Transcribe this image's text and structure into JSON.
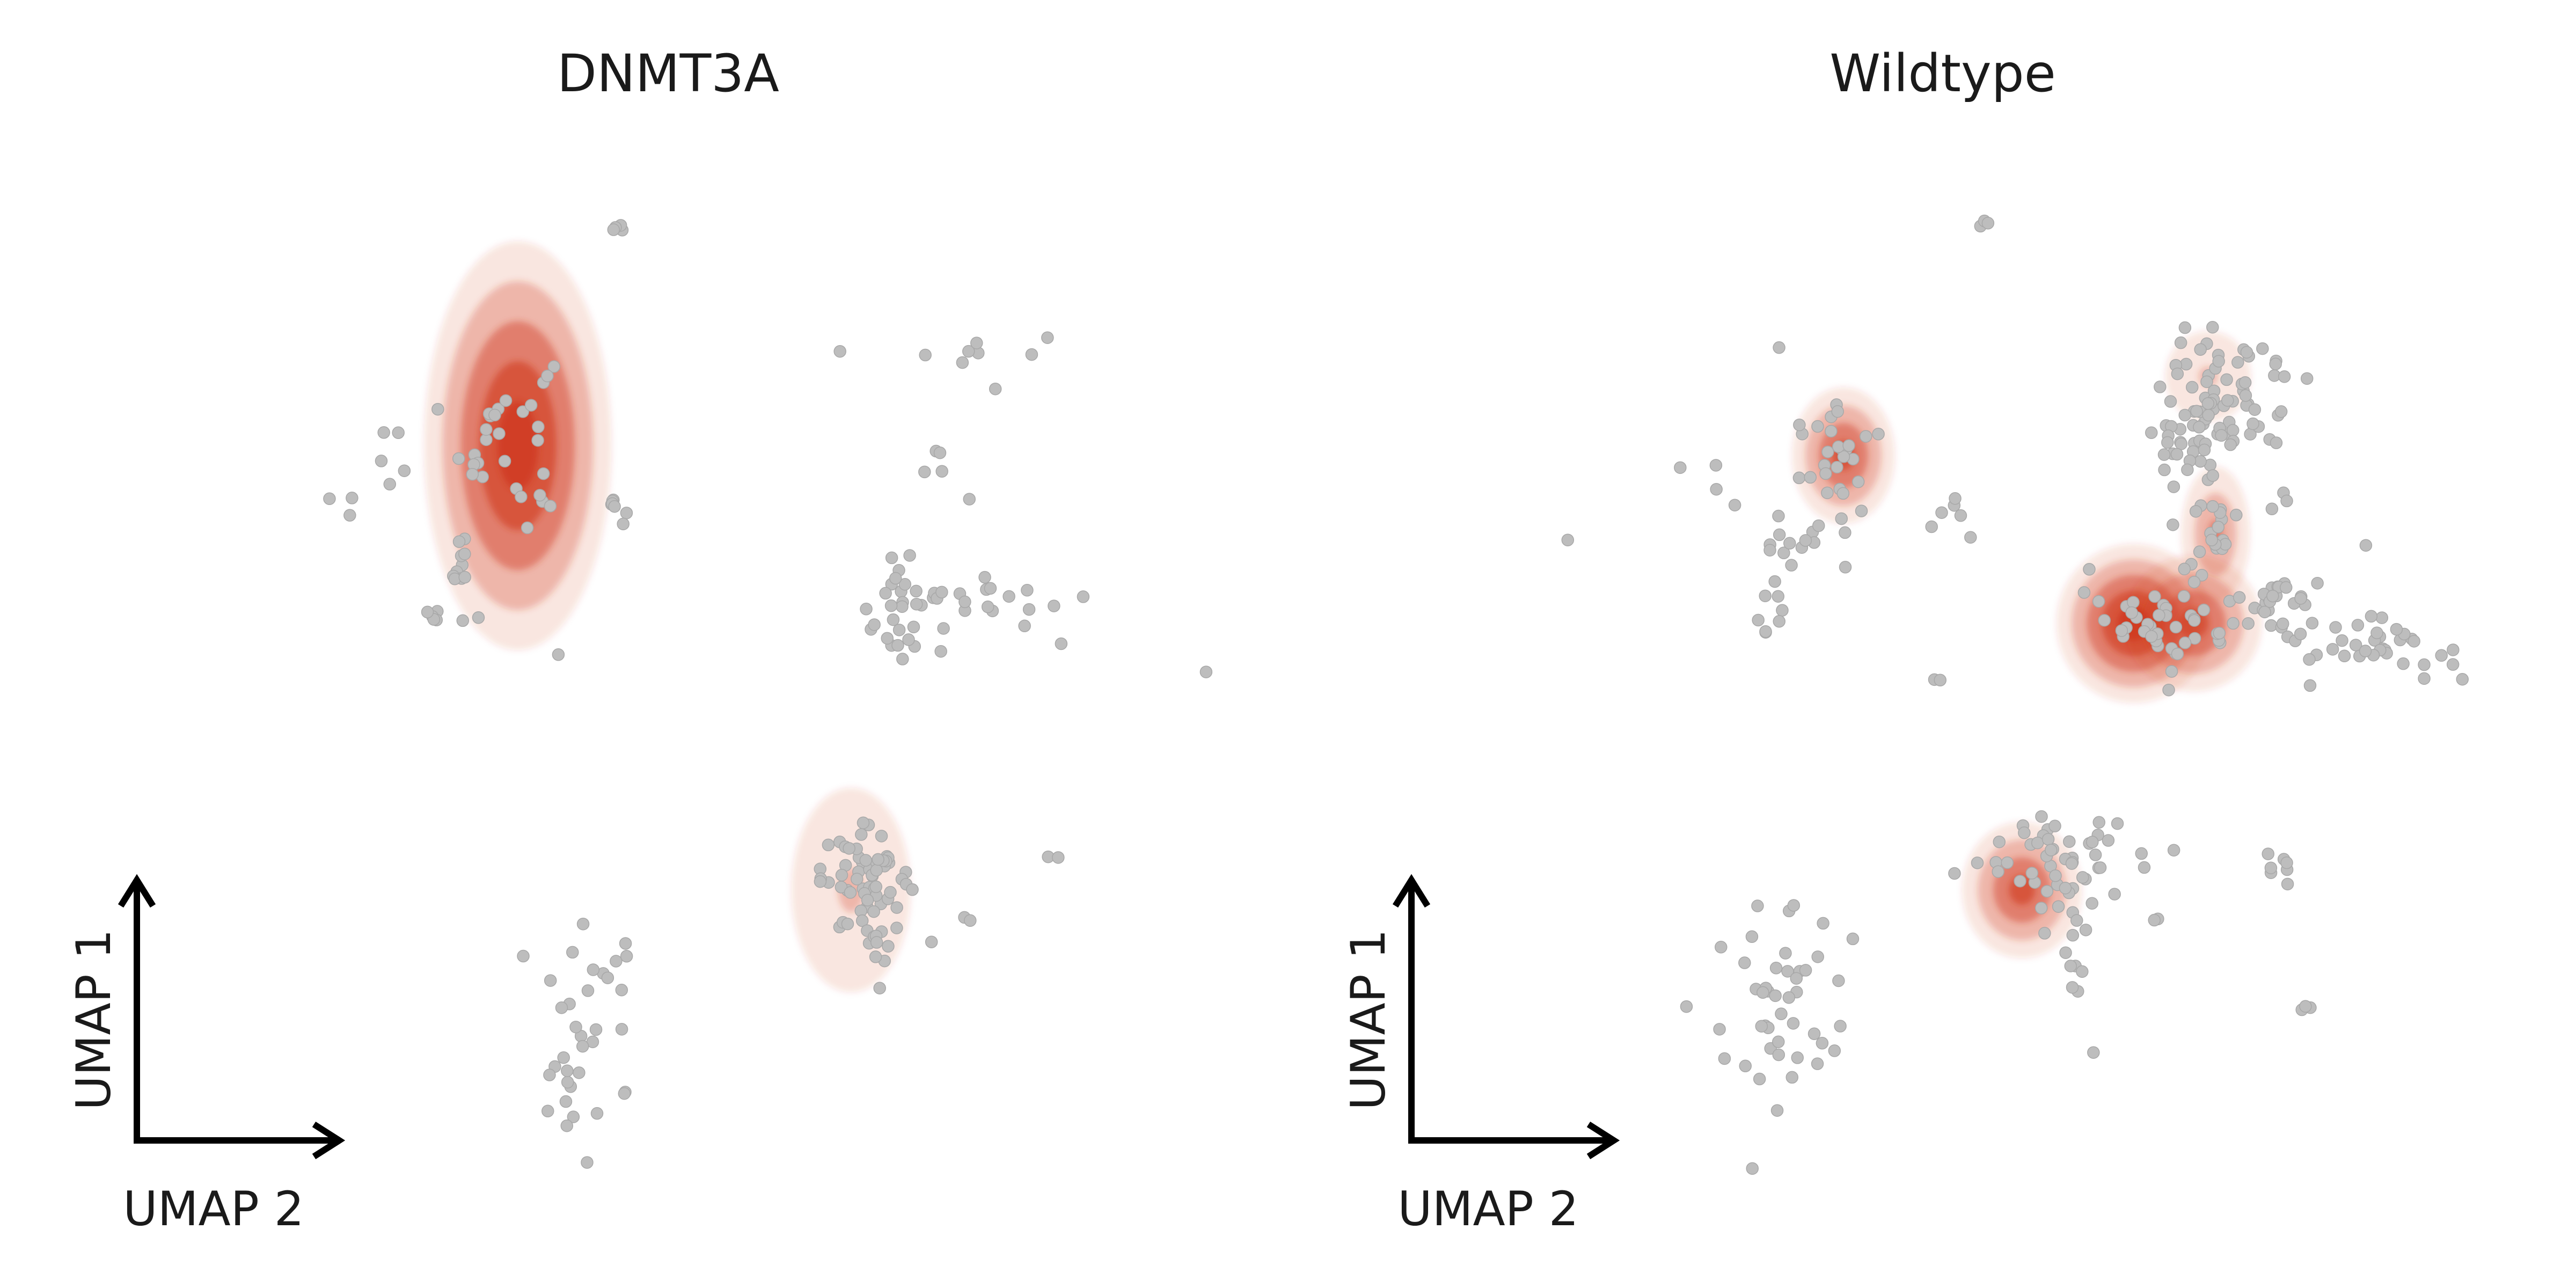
{
  "chart_data": [
    {
      "type": "scatter",
      "title": "DNMT3A",
      "xlabel": "UMAP 2",
      "ylabel": "UMAP 1",
      "grid": false,
      "legend": "none",
      "point_color": "#bdbdbd",
      "density_color": "#d03a1e",
      "axes_hidden": true,
      "xlim": [
        0,
        15
      ],
      "ylim": [
        0,
        10
      ],
      "density_peaks": [
        {
          "x": 4.6,
          "y": 6.9,
          "sx": 0.55,
          "sy": 0.9,
          "levels": 4
        },
        {
          "x": 9.1,
          "y": 2.4,
          "sx": 0.35,
          "sy": 0.45,
          "levels": 1
        }
      ],
      "clusters": [
        {
          "x": 6.0,
          "y": 9.1,
          "sx": 0.05,
          "sy": 0.04,
          "n": 4
        },
        {
          "x": 4.4,
          "y": 7.0,
          "sx": 0.35,
          "sy": 0.45,
          "n": 30
        },
        {
          "x": 3.85,
          "y": 5.7,
          "sx": 0.15,
          "sy": 0.2,
          "n": 12
        },
        {
          "x": 3.5,
          "y": 5.2,
          "sx": 0.08,
          "sy": 0.1,
          "n": 5
        },
        {
          "x": 2.8,
          "y": 6.6,
          "sx": 0.25,
          "sy": 0.3,
          "n": 6
        },
        {
          "x": 2.3,
          "y": 6.3,
          "sx": 0.2,
          "sy": 0.05,
          "n": 2
        },
        {
          "x": 5.9,
          "y": 6.3,
          "sx": 0.1,
          "sy": 0.15,
          "n": 7
        },
        {
          "x": 5.1,
          "y": 4.8,
          "sx": 0.03,
          "sy": 0.03,
          "n": 1
        },
        {
          "x": 10.7,
          "y": 7.8,
          "sx": 0.5,
          "sy": 0.15,
          "n": 9
        },
        {
          "x": 10.5,
          "y": 6.9,
          "sx": 0.2,
          "sy": 0.4,
          "n": 5
        },
        {
          "x": 9.7,
          "y": 5.3,
          "sx": 0.25,
          "sy": 0.3,
          "n": 28
        },
        {
          "x": 10.7,
          "y": 5.35,
          "sx": 0.45,
          "sy": 0.1,
          "n": 14
        },
        {
          "x": 11.8,
          "y": 5.2,
          "sx": 0.3,
          "sy": 0.1,
          "n": 5
        },
        {
          "x": 13.9,
          "y": 4.6,
          "sx": 0.03,
          "sy": 0.03,
          "n": 1
        },
        {
          "x": 9.3,
          "y": 2.5,
          "sx": 0.3,
          "sy": 0.25,
          "n": 60
        },
        {
          "x": 9.55,
          "y": 1.8,
          "sx": 0.1,
          "sy": 0.35,
          "n": 8
        },
        {
          "x": 10.2,
          "y": 1.9,
          "sx": 0.03,
          "sy": 0.03,
          "n": 1
        },
        {
          "x": 10.7,
          "y": 2.1,
          "sx": 0.05,
          "sy": 0.05,
          "n": 2
        },
        {
          "x": 11.8,
          "y": 2.7,
          "sx": 0.1,
          "sy": 0.02,
          "n": 2
        },
        {
          "x": 5.5,
          "y": 0.9,
          "sx": 0.45,
          "sy": 0.55,
          "n": 35
        }
      ]
    },
    {
      "type": "scatter",
      "title": "Wildtype",
      "xlabel": "UMAP 2",
      "ylabel": "UMAP 1",
      "grid": false,
      "legend": "none",
      "point_color": "#bdbdbd",
      "density_color": "#d03a1e",
      "axes_hidden": true,
      "xlim": [
        0,
        15
      ],
      "ylim": [
        0,
        10
      ],
      "density_peaks": [
        {
          "x": 5.3,
          "y": 6.8,
          "sx": 0.3,
          "sy": 0.3,
          "levels": 3
        },
        {
          "x": 10.2,
          "y": 7.6,
          "sx": 0.25,
          "sy": 0.2,
          "levels": 1
        },
        {
          "x": 10.3,
          "y": 6.0,
          "sx": 0.2,
          "sy": 0.3,
          "levels": 2
        },
        {
          "x": 9.2,
          "y": 5.1,
          "sx": 0.45,
          "sy": 0.35,
          "levels": 4
        },
        {
          "x": 10.0,
          "y": 5.1,
          "sx": 0.4,
          "sy": 0.3,
          "levels": 3
        },
        {
          "x": 7.7,
          "y": 2.4,
          "sx": 0.35,
          "sy": 0.3,
          "levels": 3
        }
      ],
      "clusters": [
        {
          "x": 7.2,
          "y": 9.1,
          "sx": 0.05,
          "sy": 0.04,
          "n": 3
        },
        {
          "x": 5.1,
          "y": 6.6,
          "sx": 0.3,
          "sy": 0.45,
          "n": 35
        },
        {
          "x": 4.5,
          "y": 5.8,
          "sx": 0.1,
          "sy": 0.2,
          "n": 8
        },
        {
          "x": 4.35,
          "y": 5.1,
          "sx": 0.1,
          "sy": 0.15,
          "n": 7
        },
        {
          "x": 3.5,
          "y": 6.4,
          "sx": 0.25,
          "sy": 0.25,
          "n": 4
        },
        {
          "x": 1.6,
          "y": 5.9,
          "sx": 0.03,
          "sy": 0.03,
          "n": 1
        },
        {
          "x": 6.9,
          "y": 6.2,
          "sx": 0.15,
          "sy": 0.15,
          "n": 6
        },
        {
          "x": 6.5,
          "y": 4.5,
          "sx": 0.05,
          "sy": 0.03,
          "n": 2
        },
        {
          "x": 10.5,
          "y": 7.4,
          "sx": 0.45,
          "sy": 0.3,
          "n": 70
        },
        {
          "x": 9.9,
          "y": 6.8,
          "sx": 0.2,
          "sy": 0.3,
          "n": 25
        },
        {
          "x": 10.3,
          "y": 6.0,
          "sx": 0.12,
          "sy": 0.22,
          "n": 15
        },
        {
          "x": 11.1,
          "y": 6.3,
          "sx": 0.1,
          "sy": 0.1,
          "n": 3
        },
        {
          "x": 9.6,
          "y": 5.1,
          "sx": 0.5,
          "sy": 0.3,
          "n": 45
        },
        {
          "x": 11.1,
          "y": 5.3,
          "sx": 0.35,
          "sy": 0.2,
          "n": 30
        },
        {
          "x": 12.3,
          "y": 4.9,
          "sx": 0.4,
          "sy": 0.15,
          "n": 28
        },
        {
          "x": 13.4,
          "y": 4.75,
          "sx": 0.3,
          "sy": 0.1,
          "n": 6
        },
        {
          "x": 12.3,
          "y": 5.9,
          "sx": 0.03,
          "sy": 0.03,
          "n": 1
        },
        {
          "x": 8.1,
          "y": 2.6,
          "sx": 0.5,
          "sy": 0.25,
          "n": 55
        },
        {
          "x": 8.5,
          "y": 1.6,
          "sx": 0.15,
          "sy": 0.35,
          "n": 8
        },
        {
          "x": 9.6,
          "y": 2.1,
          "sx": 0.1,
          "sy": 0.03,
          "n": 2
        },
        {
          "x": 11.2,
          "y": 2.6,
          "sx": 0.1,
          "sy": 0.12,
          "n": 7
        },
        {
          "x": 11.5,
          "y": 1.2,
          "sx": 0.15,
          "sy": 0.03,
          "n": 3
        },
        {
          "x": 4.5,
          "y": 1.2,
          "sx": 0.45,
          "sy": 0.6,
          "n": 45
        }
      ]
    }
  ]
}
